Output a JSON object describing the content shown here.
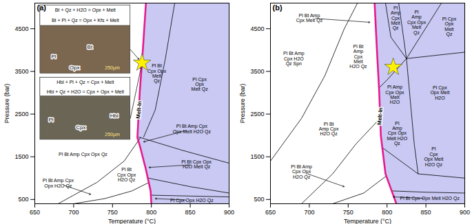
{
  "chart_data": [
    {
      "type": "phase_diagram",
      "panel": "(a)",
      "x_label": "Temperature (°C)",
      "y_label": "Pressure (bar)",
      "xlim": [
        650,
        900
      ],
      "ylim": [
        400,
        5100
      ],
      "xticks": [
        650,
        700,
        750,
        800,
        850,
        900
      ],
      "yticks": [
        500,
        1500,
        2500,
        3500,
        4500
      ],
      "melt_field": {
        "color": "#c9c9f3"
      },
      "melt_in": {
        "label": "Melt-In",
        "color": "#e6198f",
        "T": [
          800,
          799,
          793,
          786,
          782,
          785,
          789,
          793
        ],
        "P": [
          400,
          700,
          1200,
          1700,
          1950,
          3000,
          4000,
          5100
        ],
        "label_at": [
          784,
          2600
        ]
      },
      "boundaries": [
        {
          "T": [
            830,
            818,
            805,
            790
          ],
          "P": [
            5100,
            3800,
            2600,
            1960
          ]
        },
        {
          "T": [
            784,
            840,
            900
          ],
          "P": [
            1960,
            1650,
            1350
          ]
        },
        {
          "T": [
            796,
            850,
            900
          ],
          "P": [
            1000,
            800,
            650
          ]
        },
        {
          "T": [
            800,
            850,
            900
          ],
          "P": [
            600,
            580,
            560
          ]
        },
        {
          "T": [
            680,
            730,
            765,
            786
          ],
          "P": [
            400,
            900,
            1400,
            1950
          ]
        },
        {
          "T": [
            700,
            740,
            775,
            797
          ],
          "P": [
            400,
            520,
            700,
            900
          ]
        }
      ],
      "fields": [
        {
          "label": "Pl Bt\nCpx Opx\nMelt\nQz",
          "at": [
            807,
            3450
          ]
        },
        {
          "label": "Pl Cpx\nOpx\nMelt Qz",
          "at": [
            862,
            3200
          ]
        },
        {
          "label": "Pl Bt Amp Cpx\nOpx Melt H2O Qz",
          "at": [
            852,
            2150
          ],
          "arrow_to": [
            790,
            1850
          ]
        },
        {
          "label": "Pl Bt Cpx Opx\nH2O Melt Qz",
          "at": [
            858,
            1320
          ],
          "arrow_to": [
            797,
            1250
          ]
        },
        {
          "label": "Pl Cpx Opx H2O Qz",
          "at": [
            852,
            480
          ],
          "arrow_to": [
            805,
            520
          ]
        },
        {
          "label": "Pl Bt Amp Cpx Opx Qz",
          "at": [
            712,
            1550
          ]
        },
        {
          "label": "Pl Bt Amp Cpx\nOpx H2O Qz",
          "at": [
            680,
            880
          ],
          "arrow_to": [
            722,
            620
          ]
        },
        {
          "label": "Pl Bt\nCpx Opx\nH2O Qz",
          "at": [
            768,
            1080
          ]
        }
      ],
      "star": {
        "T": 788,
        "P": 3700,
        "color": "#fff200"
      },
      "insets": [
        {
          "reactions": [
            "Bt + Qz + H2O = Opx + Melt",
            "Bt + Pl + Qz = Opx + Kfs + Melt"
          ],
          "minerals": [
            "Pl",
            "Bt",
            "Opx"
          ],
          "scale_bar": "250µm"
        },
        {
          "reactions": [
            "Hbl + Pl + Qz = Cpx + Melt",
            "Hbl + Qz + H2O = Cpx + Opx + Melt"
          ],
          "minerals": [
            "Pl",
            "Hbl",
            "Cpx"
          ],
          "scale_bar": "250µm"
        }
      ]
    },
    {
      "type": "phase_diagram",
      "panel": "(b)",
      "x_label": "Temperature (°C)",
      "y_label": "Pressure (bar)",
      "xlim": [
        650,
        900
      ],
      "ylim": [
        400,
        5100
      ],
      "xticks": [
        650,
        700,
        750,
        800,
        850,
        900
      ],
      "yticks": [
        500,
        1500,
        2500,
        3500,
        4500
      ],
      "melt_field": {
        "color": "#c9c9f3"
      },
      "melt_in": {
        "label": "Melt-In",
        "color": "#e6198f",
        "T": [
          812,
          806,
          798,
          792,
          790,
          787,
          784
        ],
        "P": [
          400,
          700,
          1100,
          2000,
          3000,
          4000,
          5100
        ],
        "label_at": [
          791,
          2450
        ]
      },
      "boundaries": [
        {
          "T": [
            650,
            690,
            720,
            745,
            762
          ],
          "P": [
            1400,
            2400,
            3400,
            4500,
            5100
          ]
        },
        {
          "T": [
            690,
            730,
            760,
            791
          ],
          "P": [
            400,
            1100,
            1800,
            2400
          ]
        },
        {
          "T": [
            730,
            770,
            799
          ],
          "P": [
            400,
            650,
            1050
          ]
        },
        {
          "T": [
            798,
            805,
            825
          ],
          "P": [
            5100,
            4300,
            3800
          ]
        },
        {
          "T": [
            815,
            825
          ],
          "P": [
            5100,
            3800
          ]
        },
        {
          "T": [
            825,
            870
          ],
          "P": [
            3800,
            5100
          ]
        },
        {
          "T": [
            825,
            900
          ],
          "P": [
            3800,
            3950
          ]
        },
        {
          "T": [
            825,
            800,
            789
          ],
          "P": [
            3800,
            3300,
            3100
          ]
        },
        {
          "T": [
            825,
            830,
            835,
            840
          ],
          "P": [
            3800,
            2800,
            1800,
            1100
          ]
        },
        {
          "T": [
            795,
            840,
            900
          ],
          "P": [
            1700,
            1100,
            1000
          ]
        },
        {
          "T": [
            806,
            850,
            900
          ],
          "P": [
            700,
            670,
            650
          ]
        }
      ],
      "fields": [
        {
          "label": "Pl Bt Amp\nCpx Melt Qz",
          "at": [
            700,
            4750
          ],
          "arrow_to": [
            778,
            4650
          ]
        },
        {
          "label": "Pl Bt\nAmp\nCpx\nMelt\nH2O Qz",
          "at": [
            763,
            3850
          ]
        },
        {
          "label": "Pl\nAmp\nCpx\nMelt\nQz",
          "at": [
            811,
            4750
          ]
        },
        {
          "label": "Pl\nAmp\nCpx Opx\nMelt\nQz",
          "at": [
            838,
            4650
          ]
        },
        {
          "label": "Pl Cpx\nOpx\nMelt\nQz",
          "at": [
            880,
            4550
          ]
        },
        {
          "label": "Pl Bt Amp\nCpx H2O\nQz Spn",
          "at": [
            680,
            3800
          ]
        },
        {
          "label": "Pl Amp\nCpx Opx\nMelt\nH2O",
          "at": [
            810,
            2950
          ]
        },
        {
          "label": "Pl Cpx\nOpx Melt\nH2O",
          "at": [
            868,
            3000
          ]
        },
        {
          "label": "Pl\nAmp\nCpx Opx\nMelt H2O\nQz",
          "at": [
            813,
            2050
          ]
        },
        {
          "label": "Pl Bt\nAmp Cpx\nH2O Qz",
          "at": [
            725,
            2150
          ]
        },
        {
          "label": "Pl Bt Amp\nCpx Opx\nH2O Qz",
          "at": [
            690,
            1150
          ],
          "arrow_to": [
            745,
            800
          ]
        },
        {
          "label": "Pl\nCpx\nOpx Melt\nH2O Qz",
          "at": [
            860,
            1500
          ]
        },
        {
          "label": "Pl Bt Cpx Opx Melt H2O Qz",
          "at": [
            855,
            520
          ],
          "arrow_to": [
            808,
            560
          ]
        }
      ],
      "star": {
        "T": 808,
        "P": 3600,
        "color": "#fff200"
      }
    }
  ]
}
